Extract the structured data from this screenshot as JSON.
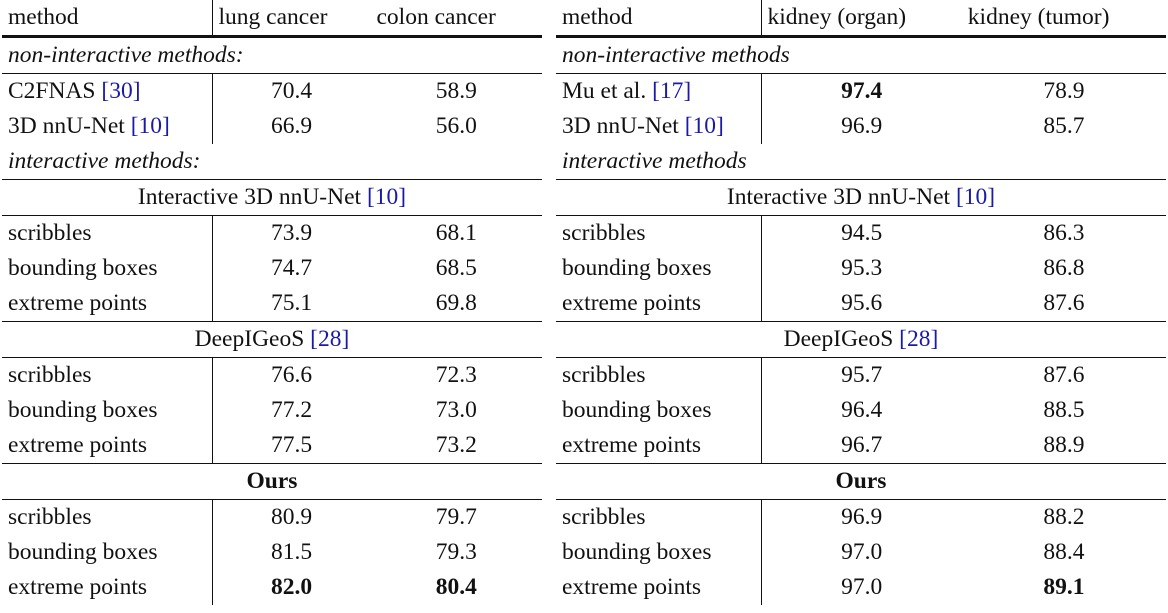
{
  "tables": [
    {
      "header": [
        "method",
        "lung cancer",
        "colon cancer"
      ],
      "rows": [
        {
          "kind": "section",
          "text": "non-interactive methods:"
        },
        {
          "kind": "row",
          "cells": [
            "C2FNAS",
            "70.4",
            "58.9"
          ],
          "cite": "[30]"
        },
        {
          "kind": "row",
          "cells": [
            "3D nnU-Net",
            "66.9",
            "56.0"
          ],
          "cite": "[10]"
        },
        {
          "kind": "section",
          "text": "interactive methods:"
        },
        {
          "kind": "group",
          "text": "Interactive 3D nnU-Net",
          "cite": "[10]"
        },
        {
          "kind": "row",
          "cells": [
            "scribbles",
            "73.9",
            "68.1"
          ]
        },
        {
          "kind": "row",
          "cells": [
            "bounding boxes",
            "74.7",
            "68.5"
          ]
        },
        {
          "kind": "row",
          "cells": [
            "extreme points",
            "75.1",
            "69.8"
          ]
        },
        {
          "kind": "group",
          "text": "DeepIGeoS",
          "cite": "[28]"
        },
        {
          "kind": "row",
          "cells": [
            "scribbles",
            "76.6",
            "72.3"
          ]
        },
        {
          "kind": "row",
          "cells": [
            "bounding boxes",
            "77.2",
            "73.0"
          ]
        },
        {
          "kind": "row",
          "cells": [
            "extreme points",
            "77.5",
            "73.2"
          ]
        },
        {
          "kind": "group",
          "text": "Ours",
          "bold": true
        },
        {
          "kind": "row",
          "cells": [
            "scribbles",
            "80.9",
            "79.7"
          ]
        },
        {
          "kind": "row",
          "cells": [
            "bounding boxes",
            "81.5",
            "79.3"
          ]
        },
        {
          "kind": "row",
          "cells": [
            "extreme points",
            "82.0",
            "80.4"
          ],
          "bold": [
            1,
            2
          ]
        }
      ]
    },
    {
      "header": [
        "method",
        "kidney (organ)",
        "kidney (tumor)"
      ],
      "rows": [
        {
          "kind": "section",
          "text": "non-interactive methods"
        },
        {
          "kind": "row",
          "cells": [
            "Mu et al.",
            "97.4",
            "78.9"
          ],
          "cite": "[17]",
          "bold": [
            1
          ]
        },
        {
          "kind": "row",
          "cells": [
            "3D nnU-Net",
            "96.9",
            "85.7"
          ],
          "cite": "[10]"
        },
        {
          "kind": "section",
          "text": "interactive methods"
        },
        {
          "kind": "group",
          "text": "Interactive 3D nnU-Net",
          "cite": "[10]"
        },
        {
          "kind": "row",
          "cells": [
            "scribbles",
            "94.5",
            "86.3"
          ]
        },
        {
          "kind": "row",
          "cells": [
            "bounding boxes",
            "95.3",
            "86.8"
          ]
        },
        {
          "kind": "row",
          "cells": [
            "extreme points",
            "95.6",
            "87.6"
          ]
        },
        {
          "kind": "group",
          "text": "DeepIGeoS",
          "cite": "[28]"
        },
        {
          "kind": "row",
          "cells": [
            "scribbles",
            "95.7",
            "87.6"
          ]
        },
        {
          "kind": "row",
          "cells": [
            "bounding boxes",
            "96.4",
            "88.5"
          ]
        },
        {
          "kind": "row",
          "cells": [
            "extreme points",
            "96.7",
            "88.9"
          ]
        },
        {
          "kind": "group",
          "text": "Ours",
          "bold": true
        },
        {
          "kind": "row",
          "cells": [
            "scribbles",
            "96.9",
            "88.2"
          ]
        },
        {
          "kind": "row",
          "cells": [
            "bounding boxes",
            "97.0",
            "88.4"
          ]
        },
        {
          "kind": "row",
          "cells": [
            "extreme points",
            "97.0",
            "89.1"
          ],
          "bold": [
            2
          ]
        }
      ]
    }
  ]
}
